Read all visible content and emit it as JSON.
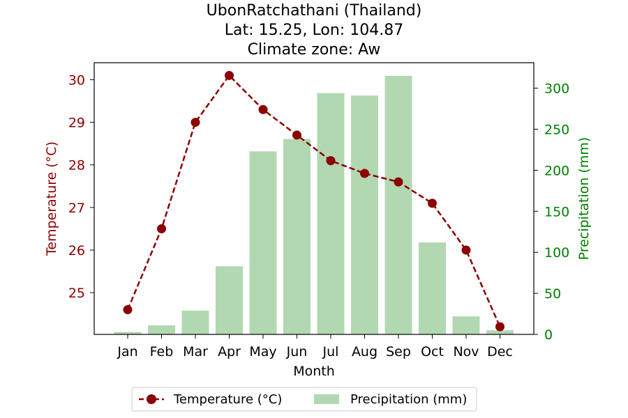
{
  "chart_data": {
    "type": "bar+line",
    "title_lines": [
      "UbonRatchathani (Thailand)",
      "Lat: 15.25, Lon: 104.87",
      "Climate zone: Aw"
    ],
    "xlabel": "Month",
    "ylabel_left": "Temperature (°C)",
    "ylabel_right": "Precipitation (mm)",
    "categories": [
      "Jan",
      "Feb",
      "Mar",
      "Apr",
      "May",
      "Jun",
      "Jul",
      "Aug",
      "Sep",
      "Oct",
      "Nov",
      "Dec"
    ],
    "temperature": {
      "name": "Temperature (°C)",
      "values": [
        24.6,
        26.5,
        29.0,
        30.1,
        29.3,
        28.7,
        28.1,
        27.8,
        27.6,
        27.1,
        26.0,
        24.2
      ],
      "ylim": [
        24.02,
        30.4
      ],
      "ticks": [
        25,
        26,
        27,
        28,
        29,
        30
      ],
      "color": "#8b0000",
      "style": "dashed line with circle markers"
    },
    "precipitation": {
      "name": "Precipitation (mm)",
      "values": [
        3,
        11,
        29,
        83,
        223,
        238,
        294,
        291,
        315,
        112,
        22,
        5
      ],
      "ylim": [
        0,
        331
      ],
      "ticks": [
        0,
        50,
        100,
        150,
        200,
        250,
        300
      ],
      "color": "#008000",
      "bar_color": "#b2d8b2"
    },
    "legend_placement": "bottom-center",
    "grid": false
  }
}
